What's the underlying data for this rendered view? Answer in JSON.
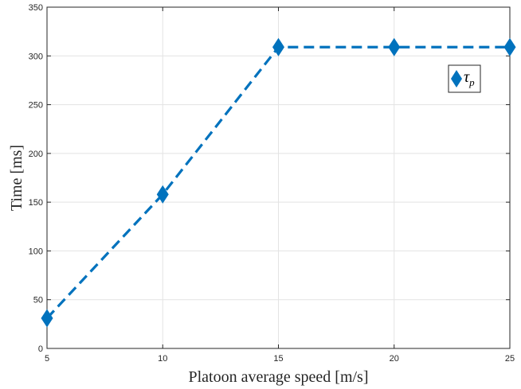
{
  "chart_data": {
    "type": "line",
    "xlabel": "Platoon average speed [m/s]",
    "ylabel": "Time [ms]",
    "xlim": [
      5,
      25
    ],
    "ylim": [
      0,
      350
    ],
    "xticks": [
      5,
      10,
      15,
      20,
      25
    ],
    "yticks": [
      0,
      50,
      100,
      150,
      200,
      250,
      300,
      350
    ],
    "grid": true,
    "legend_position": "upper-right",
    "series": [
      {
        "name": "τp",
        "legend_symbol": "τ",
        "legend_subscript": "p",
        "color": "#0072BD",
        "line_style": "dashed",
        "marker": "diamond",
        "x": [
          5,
          10,
          15,
          20,
          25
        ],
        "y": [
          31,
          158,
          309,
          309,
          309
        ]
      }
    ]
  }
}
